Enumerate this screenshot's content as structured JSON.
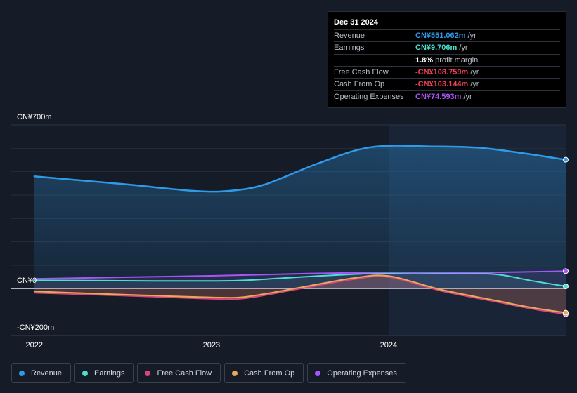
{
  "tooltip": {
    "date": "Dec 31 2024",
    "rows": [
      {
        "label": "Revenue",
        "value": "CN¥551.062m",
        "unit": "/yr",
        "color": "#2f9ae8"
      },
      {
        "label": "Earnings",
        "value": "CN¥9.706m",
        "unit": "/yr",
        "color": "#4de0d0"
      },
      {
        "label": "",
        "value": "1.8%",
        "unit": "profit margin",
        "color": "#ffffff"
      },
      {
        "label": "Free Cash Flow",
        "value": "-CN¥108.759m",
        "unit": "/yr",
        "color": "#f0405a"
      },
      {
        "label": "Cash From Op",
        "value": "-CN¥103.144m",
        "unit": "/yr",
        "color": "#f0405a"
      },
      {
        "label": "Operating Expenses",
        "value": "CN¥74.593m",
        "unit": "/yr",
        "color": "#a855f7"
      }
    ]
  },
  "legend": [
    {
      "label": "Revenue",
      "color": "#2f9ae8"
    },
    {
      "label": "Earnings",
      "color": "#4de0d0"
    },
    {
      "label": "Free Cash Flow",
      "color": "#d9457a"
    },
    {
      "label": "Cash From Op",
      "color": "#e8a85c"
    },
    {
      "label": "Operating Expenses",
      "color": "#a855f7"
    }
  ],
  "chart_data": {
    "type": "area",
    "title": "",
    "y_tick_labels": [
      "CN¥700m",
      "CN¥0",
      "-CN¥200m"
    ],
    "y_tick_values": [
      700,
      0,
      -200
    ],
    "ylim": [
      -200,
      700
    ],
    "x_tick_labels": [
      "2022",
      "2023",
      "2024"
    ],
    "x_tick_values": [
      2022.0,
      2023.0,
      2024.0
    ],
    "xlim": [
      2021.87,
      2025.0
    ],
    "highlight_from": 2024.0,
    "grid": true,
    "legend_position": "bottom",
    "series": [
      {
        "name": "Revenue",
        "color": "#2f9ae8",
        "x": [
          2022.0,
          2022.5,
          2022.9,
          2023.1,
          2023.3,
          2023.6,
          2023.9,
          2024.25,
          2024.5,
          2024.75,
          2025.0
        ],
        "y": [
          480,
          447,
          418,
          418,
          445,
          535,
          605,
          608,
          603,
          580,
          551
        ]
      },
      {
        "name": "Earnings",
        "color": "#4de0d0",
        "x": [
          2022.0,
          2022.5,
          2023.0,
          2023.2,
          2023.5,
          2023.8,
          2024.0,
          2024.3,
          2024.6,
          2024.8,
          2025.0
        ],
        "y": [
          36,
          34,
          33,
          36,
          50,
          62,
          67,
          67,
          62,
          35,
          10
        ]
      },
      {
        "name": "Free Cash Flow",
        "color": "#d9457a",
        "x": [
          2022.0,
          2022.5,
          2023.0,
          2023.2,
          2023.5,
          2023.8,
          2024.0,
          2024.3,
          2024.6,
          2024.8,
          2025.0
        ],
        "y": [
          -18,
          -30,
          -43,
          -40,
          0,
          40,
          50,
          -10,
          -55,
          -85,
          -109
        ]
      },
      {
        "name": "Cash From Op",
        "color": "#e8a85c",
        "x": [
          2022.0,
          2022.5,
          2023.0,
          2023.2,
          2023.5,
          2023.8,
          2024.0,
          2024.3,
          2024.6,
          2024.8,
          2025.0
        ],
        "y": [
          -12,
          -25,
          -37,
          -34,
          5,
          45,
          54,
          -5,
          -50,
          -80,
          -103
        ]
      },
      {
        "name": "Operating Expenses",
        "color": "#a855f7",
        "x": [
          2022.0,
          2022.5,
          2023.0,
          2023.5,
          2024.0,
          2024.5,
          2025.0
        ],
        "y": [
          42,
          49,
          55,
          64,
          70,
          69,
          75
        ]
      }
    ]
  }
}
